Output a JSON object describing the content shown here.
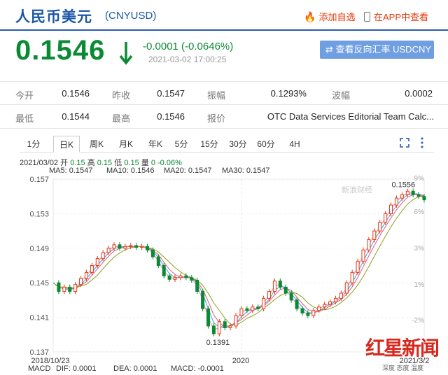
{
  "header": {
    "title": "人民币美元",
    "code": "(CNYUSD)",
    "favorite_label": "添加自选",
    "app_label": "在APP中查看"
  },
  "quote": {
    "price": "0.1546",
    "change": "-0.0001 (-0.0646%)",
    "timestamp": "2021-03-02 17:00:25",
    "direction": "down",
    "color_down": "#0a8a32",
    "reverse_button": "查看反向汇率 USDCNY"
  },
  "stats": {
    "row1": [
      {
        "label": "今开",
        "value": "0.1546"
      },
      {
        "label": "昨收",
        "value": "0.1547"
      },
      {
        "label": "振幅",
        "value": "0.1293%"
      },
      {
        "label": "波幅",
        "value": "0.0002"
      }
    ],
    "row2": [
      {
        "label": "最低",
        "value": "0.1544"
      },
      {
        "label": "最高",
        "value": "0.1546"
      },
      {
        "label": "报价",
        "value": "OTC Data Services Editorial Team Calc..."
      }
    ]
  },
  "tabs": [
    "1分",
    "日K",
    "周K",
    "月K",
    "年K",
    "5分",
    "15分",
    "30分",
    "60分",
    "4H"
  ],
  "active_tab": "日K",
  "chart_info": {
    "date": "2021/03/02",
    "open_label": "开",
    "open": "0.15",
    "high_label": "高",
    "high": "0.15",
    "low_label": "低",
    "low": "0.15",
    "vol_label": "量",
    "vol": "0",
    "change": "-0.06%"
  },
  "ma": [
    {
      "label": "MA5: 0.1547",
      "color": "#e880b8"
    },
    {
      "label": "MA10: 0.1546",
      "color": "#3aa0d8"
    },
    {
      "label": "MA20: 0.1547",
      "color": "#e05a8a"
    },
    {
      "label": "MA30: 0.1547",
      "color": "#8aa020"
    }
  ],
  "macd": [
    {
      "label": "MACD",
      "color": "#555"
    },
    {
      "label": "DIF: 0.0001",
      "color": "#3a70d0"
    },
    {
      "label": "DEA: 0.0001",
      "color": "#e070b0"
    },
    {
      "label": "MACD: -0.0001",
      "color": "#d03040"
    }
  ],
  "watermark": {
    "brand": "红星新闻",
    "sub": "深度 态度 温度",
    "sina": "新浪财经"
  },
  "chart_data": {
    "type": "line",
    "yticks": [
      "0.157",
      "0.153",
      "0.149",
      "0.145",
      "0.141",
      "0.137"
    ],
    "pct_ticks": [
      "9%",
      "6%",
      "3%",
      "1%",
      "-2%"
    ],
    "xlabels": [
      "2018/10/23",
      "2020",
      "2021/3/2"
    ],
    "annotations": {
      "high": "0.1556",
      "low": "0.1391"
    },
    "ylim": [
      0.137,
      0.157
    ],
    "series": [
      {
        "color": "#d03040",
        "values": [
          0.145,
          0.144,
          0.1445,
          0.144,
          0.1448,
          0.1455,
          0.1462,
          0.147,
          0.1478,
          0.1485,
          0.149,
          0.1494,
          0.149,
          0.1492,
          0.1493,
          0.1491,
          0.1492,
          0.1488,
          0.148,
          0.147,
          0.1458,
          0.1454,
          0.1456,
          0.1458,
          0.1456,
          0.1453,
          0.144,
          0.142,
          0.14,
          0.1391,
          0.1405,
          0.1398,
          0.14,
          0.1412,
          0.142,
          0.1418,
          0.1422,
          0.142,
          0.1432,
          0.144,
          0.1452,
          0.1445,
          0.1438,
          0.143,
          0.142,
          0.1415,
          0.1412,
          0.1418,
          0.1422,
          0.1425,
          0.1428,
          0.1432,
          0.1438,
          0.145,
          0.1462,
          0.1475,
          0.1488,
          0.15,
          0.151,
          0.152,
          0.153,
          0.154,
          0.1548,
          0.1552,
          0.1556,
          0.1552,
          0.155,
          0.1546
        ]
      }
    ]
  }
}
